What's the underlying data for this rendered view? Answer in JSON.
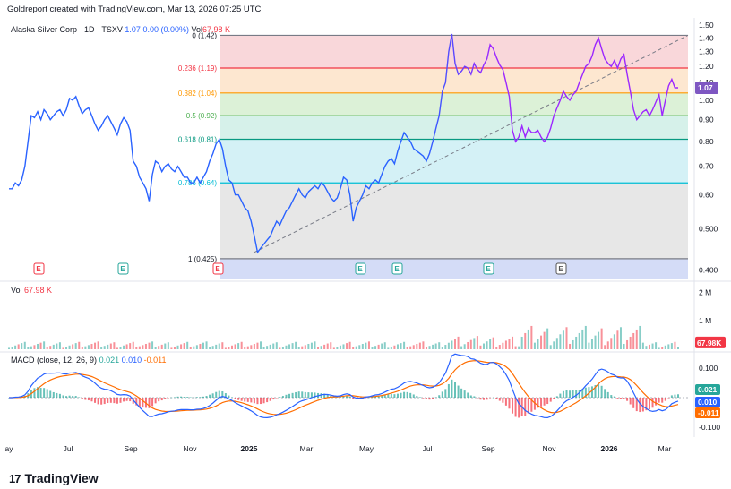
{
  "header": "Goldreport created with TradingView.com, Mar 13, 2026 07:25 UTC",
  "legend": {
    "symbol": "Alaska Silver Corp · 1D · TSXV",
    "price": "1.07",
    "change": "0.00 (0.00%)",
    "vol_label": "Vol",
    "vol_value": "67.98 K"
  },
  "volume_legend": {
    "label": "Vol",
    "value": "67.98 K"
  },
  "macd_legend": {
    "label": "MACD (close, 12, 26, 9)",
    "hist": "0.021",
    "macd": "0.010",
    "signal": "-0.011"
  },
  "brand": "TradingView",
  "colors": {
    "price_line_start": "#2962ff",
    "price_line_end": "#9c27ff",
    "macd": "#2962ff",
    "signal": "#ff6d00",
    "hist_pos": "#26a69a",
    "hist_neg": "#f23645",
    "vol_up": "#26a69a",
    "vol_down": "#f23645"
  },
  "chart_data": [
    {
      "type": "line",
      "name": "price",
      "y_ticks": [
        "1.50",
        "1.40",
        "1.30",
        "1.20",
        "1.10",
        "1.00",
        "0.90",
        "0.80",
        "0.70",
        "0.60",
        "0.500",
        "0.400"
      ],
      "y_tick_values": [
        1.5,
        1.4,
        1.3,
        1.2,
        1.1,
        1.0,
        0.9,
        0.8,
        0.7,
        0.6,
        0.5,
        0.4
      ],
      "scale": "log",
      "x_ticks": [
        "ay",
        "Jul",
        "Sep",
        "Nov",
        "2025",
        "Mar",
        "May",
        "Jul",
        "Sep",
        "Nov",
        "2026",
        "Mar"
      ],
      "last_price_label": "1.07",
      "fib_levels": [
        {
          "label": "0 (1.42)",
          "value": 1.42,
          "line": "#787b86",
          "fill": "#f8d0d4"
        },
        {
          "label": "0.236 (1.19)",
          "value": 1.19,
          "line": "#f23645",
          "fill": "#fde3c8"
        },
        {
          "label": "0.382 (1.04)",
          "value": 1.04,
          "line": "#ff9800",
          "fill": "#d6efd0"
        },
        {
          "label": "0.5 (0.92)",
          "value": 0.92,
          "line": "#4caf50",
          "fill": "#cfeee6"
        },
        {
          "label": "0.618 (0.81)",
          "value": 0.81,
          "line": "#089981",
          "fill": "#cdeff4"
        },
        {
          "label": "0.786 (0.64)",
          "value": 0.64,
          "line": "#00bcd4",
          "fill": "#e3e3e3"
        },
        {
          "label": "1 (0.425)",
          "value": 0.425,
          "line": "#787b86",
          "fill": ""
        }
      ],
      "earnings_markers": [
        "E",
        "E",
        "E",
        "E",
        "E",
        "E",
        "E"
      ],
      "values": [
        0.62,
        0.62,
        0.64,
        0.63,
        0.65,
        0.7,
        0.8,
        0.92,
        0.91,
        0.94,
        0.9,
        0.95,
        0.93,
        0.9,
        0.92,
        0.94,
        0.95,
        0.92,
        0.95,
        1.01,
        1.0,
        1.02,
        0.97,
        0.93,
        0.95,
        0.96,
        0.92,
        0.88,
        0.85,
        0.87,
        0.9,
        0.92,
        0.89,
        0.86,
        0.83,
        0.88,
        0.91,
        0.89,
        0.85,
        0.72,
        0.7,
        0.66,
        0.64,
        0.62,
        0.58,
        0.67,
        0.72,
        0.71,
        0.68,
        0.7,
        0.71,
        0.69,
        0.68,
        0.7,
        0.68,
        0.66,
        0.66,
        0.64,
        0.64,
        0.66,
        0.64,
        0.66,
        0.68,
        0.72,
        0.75,
        0.79,
        0.81,
        0.77,
        0.7,
        0.65,
        0.64,
        0.6,
        0.6,
        0.58,
        0.56,
        0.55,
        0.52,
        0.48,
        0.44,
        0.45,
        0.46,
        0.47,
        0.48,
        0.5,
        0.52,
        0.51,
        0.53,
        0.55,
        0.56,
        0.58,
        0.6,
        0.62,
        0.6,
        0.59,
        0.61,
        0.62,
        0.63,
        0.62,
        0.64,
        0.63,
        0.61,
        0.59,
        0.58,
        0.59,
        0.62,
        0.66,
        0.65,
        0.6,
        0.52,
        0.56,
        0.58,
        0.6,
        0.63,
        0.62,
        0.64,
        0.65,
        0.64,
        0.67,
        0.7,
        0.72,
        0.73,
        0.71,
        0.76,
        0.8,
        0.84,
        0.82,
        0.8,
        0.77,
        0.76,
        0.75,
        0.74,
        0.72,
        0.75,
        0.8,
        0.86,
        0.92,
        1.05,
        1.1,
        1.3,
        1.43,
        1.22,
        1.15,
        1.17,
        1.2,
        1.19,
        1.15,
        1.22,
        1.18,
        1.16,
        1.21,
        1.25,
        1.35,
        1.32,
        1.26,
        1.21,
        1.18,
        1.1,
        1.02,
        0.85,
        0.8,
        0.82,
        0.87,
        0.82,
        0.86,
        0.84,
        0.84,
        0.85,
        0.82,
        0.8,
        0.82,
        0.86,
        0.92,
        0.96,
        1.0,
        1.05,
        1.02,
        1.0,
        1.03,
        1.05,
        1.1,
        1.15,
        1.2,
        1.22,
        1.27,
        1.35,
        1.4,
        1.32,
        1.25,
        1.22,
        1.2,
        1.24,
        1.19,
        1.25,
        1.28,
        1.15,
        1.05,
        0.95,
        0.9,
        0.92,
        0.94,
        0.95,
        0.92,
        0.95,
        0.99,
        1.03,
        0.92,
        1.0,
        1.08,
        1.12,
        1.07,
        1.07
      ],
      "trendline": {
        "from_value": 0.44,
        "to_value": 1.42
      }
    },
    {
      "type": "bar",
      "name": "volume",
      "y_ticks": [
        "2 M",
        "1 M"
      ],
      "y_tick_values": [
        2000000,
        1000000
      ],
      "last_value_label": "67.98K"
    },
    {
      "type": "line",
      "name": "macd",
      "y_ticks": [
        "0.100",
        "0.050",
        "-0.100"
      ],
      "y_tick_values": [
        0.1,
        0.05,
        -0.1
      ],
      "value_labels": [
        "0.021",
        "0.010",
        "-0.011"
      ]
    }
  ]
}
